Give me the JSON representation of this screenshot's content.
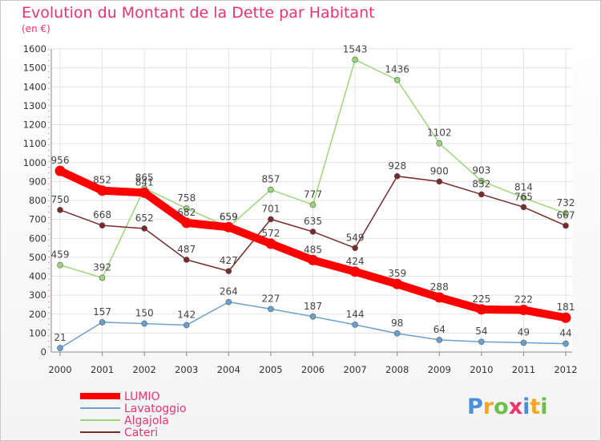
{
  "chart_data": {
    "type": "line",
    "title": "Evolution du Montant de la Dette par Habitant",
    "subtitle": "(en €)",
    "xlabel": "",
    "ylabel": "",
    "x": [
      "2000",
      "2001",
      "2002",
      "2003",
      "2004",
      "2005",
      "2006",
      "2007",
      "2008",
      "2009",
      "2010",
      "2011",
      "2012"
    ],
    "ylim": [
      0,
      1600
    ],
    "yticks": [
      0,
      100,
      200,
      300,
      400,
      500,
      600,
      700,
      800,
      900,
      1000,
      1100,
      1200,
      1300,
      1400,
      1500,
      1600
    ],
    "grid": true,
    "legend_position": "bottom-left",
    "series": [
      {
        "name": "LUMIO",
        "color": "#ff0000",
        "values": [
          956,
          852,
          841,
          682,
          659,
          572,
          485,
          424,
          359,
          288,
          225,
          222,
          181
        ]
      },
      {
        "name": "Lavatoggio",
        "color": "#6aa0cf",
        "values": [
          21,
          157,
          150,
          142,
          264,
          227,
          187,
          144,
          98,
          64,
          54,
          49,
          44
        ]
      },
      {
        "name": "Algajola",
        "color": "#9dd67a",
        "values": [
          459,
          392,
          865,
          758,
          659,
          857,
          777,
          1543,
          1436,
          1102,
          903,
          814,
          732
        ]
      },
      {
        "name": "Cateri",
        "color": "#7a2a2a",
        "values": [
          750,
          668,
          652,
          487,
          427,
          701,
          635,
          549,
          928,
          900,
          832,
          765,
          667
        ]
      }
    ]
  },
  "logo": {
    "text": "Proxiti",
    "letters": [
      "P",
      "r",
      "o",
      "x",
      "i",
      "t",
      "i"
    ],
    "colors": [
      "#4a90d9",
      "#f5a623",
      "#6cc04a",
      "#e8346f",
      "#4a90d9",
      "#f5a623",
      "#6cc04a"
    ]
  }
}
